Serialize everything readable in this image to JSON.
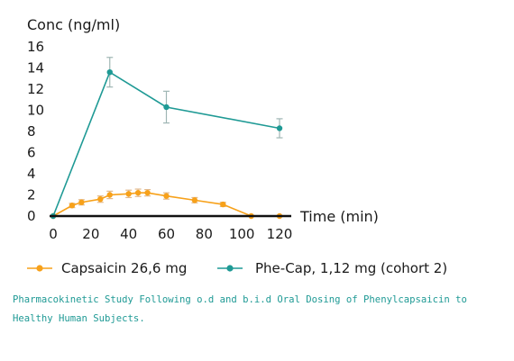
{
  "chart_data": {
    "type": "line",
    "ylabel": "Conc (ng/ml)",
    "xlabel": "Time (min)",
    "xlim": [
      0,
      120
    ],
    "ylim": [
      0,
      16
    ],
    "xticks": [
      0,
      20,
      40,
      60,
      80,
      100,
      120
    ],
    "yticks": [
      0,
      2,
      4,
      6,
      8,
      10,
      12,
      14,
      16
    ],
    "grid": false,
    "legend_position": "bottom",
    "series": [
      {
        "name": "Capsaicin 26,6 mg",
        "color": "#f7a11a",
        "x": [
          0,
          10,
          15,
          25,
          30,
          40,
          45,
          50,
          60,
          75,
          90,
          105,
          120
        ],
        "y": [
          0,
          1.0,
          1.3,
          1.6,
          2.0,
          2.1,
          2.2,
          2.2,
          1.9,
          1.5,
          1.1,
          0,
          0
        ],
        "err": [
          0,
          0.2,
          0.25,
          0.3,
          0.35,
          0.35,
          0.35,
          0.3,
          0.3,
          0.25,
          0.2,
          0,
          0
        ]
      },
      {
        "name": "Phe-Cap, 1,12 mg (cohort 2)",
        "color": "#1f9a95",
        "x": [
          0,
          30,
          60,
          120
        ],
        "y": [
          0,
          13.6,
          10.3,
          8.3
        ],
        "err": [
          0,
          1.4,
          1.5,
          0.9
        ]
      }
    ]
  },
  "caption": "Pharmacokinetic Study Following o.d and b.i.d Oral Dosing of Phenylcapsaicin to Healthy Human Subjects."
}
